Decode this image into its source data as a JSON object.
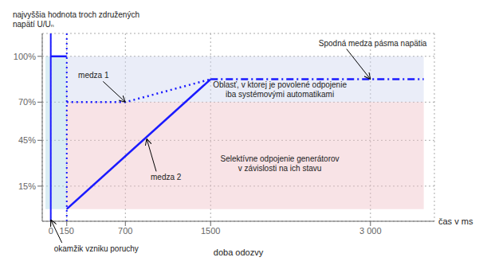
{
  "chart_data": {
    "type": "line",
    "ylabel": "najvyššia hodnota troch združených\nnapätí U/Uₙ",
    "xlabel": "doba odozvy",
    "x_unit_label": "čas v ms",
    "xlim": [
      -80,
      3600
    ],
    "ylim": [
      -8,
      115
    ],
    "xticks": [
      0,
      150,
      700,
      1500,
      {
        "value": 3000,
        "label": "3 000"
      }
    ],
    "yticks": [
      {
        "value": 15,
        "label": "15%"
      },
      {
        "value": 45,
        "label": "45%"
      },
      {
        "value": 70,
        "label": "70%"
      },
      {
        "value": 100,
        "label": "100%"
      }
    ],
    "grid": true,
    "color": "#1a1aff",
    "series": [
      {
        "x": [
          150,
          1500
        ],
        "values": [
          0,
          85
        ],
        "line_style": "solid"
      },
      {
        "x": [
          0,
          150
        ],
        "values": [
          100,
          100
        ],
        "line_style": "solid"
      },
      {
        "x": [
          150,
          700,
          1500
        ],
        "values": [
          70,
          70,
          85
        ],
        "line_style": "dotted"
      },
      {
        "x": [
          1500,
          3500
        ],
        "values": [
          85,
          85
        ],
        "line_style": "dashdot"
      }
    ],
    "vertical_lines": [
      {
        "x": 0,
        "line_style": "solid"
      },
      {
        "x": 150,
        "line_style": "dotted"
      }
    ],
    "regions": [
      {
        "x": [
          -50,
          0
        ],
        "y": [
          0,
          100
        ],
        "color": "#add8e6"
      },
      {
        "x": [
          0,
          150
        ],
        "y": [
          0,
          100
        ],
        "color": "#add8e6"
      },
      {
        "x": [
          150,
          3500
        ],
        "y": [
          70,
          100
        ],
        "color": "#d0d8f0"
      },
      {
        "x": [
          150,
          3500
        ],
        "y": [
          45,
          70
        ],
        "color": "#f0c0c8"
      },
      {
        "x": [
          150,
          3500
        ],
        "y": [
          0,
          45
        ],
        "color": "#f0c0c8"
      }
    ],
    "annotations": [
      {
        "text": "medza 1",
        "x": 700,
        "y": 70
      },
      {
        "text": "medza 2",
        "x": 900,
        "y": 46
      },
      {
        "text": "Spodná medza pásma napätia",
        "x": 3000,
        "y": 85
      },
      {
        "text": "okamžik vzniku poruchy",
        "x": 0,
        "y": -7
      },
      {
        "text": "Oblasť, v ktorej je povolené odpojenie\niba systémovými automatikami",
        "x": 2000,
        "y": 78
      },
      {
        "text": "Selektívne odpojenie generátorov\nv závislosti na ich stavu",
        "x": 2000,
        "y": 30
      }
    ]
  }
}
